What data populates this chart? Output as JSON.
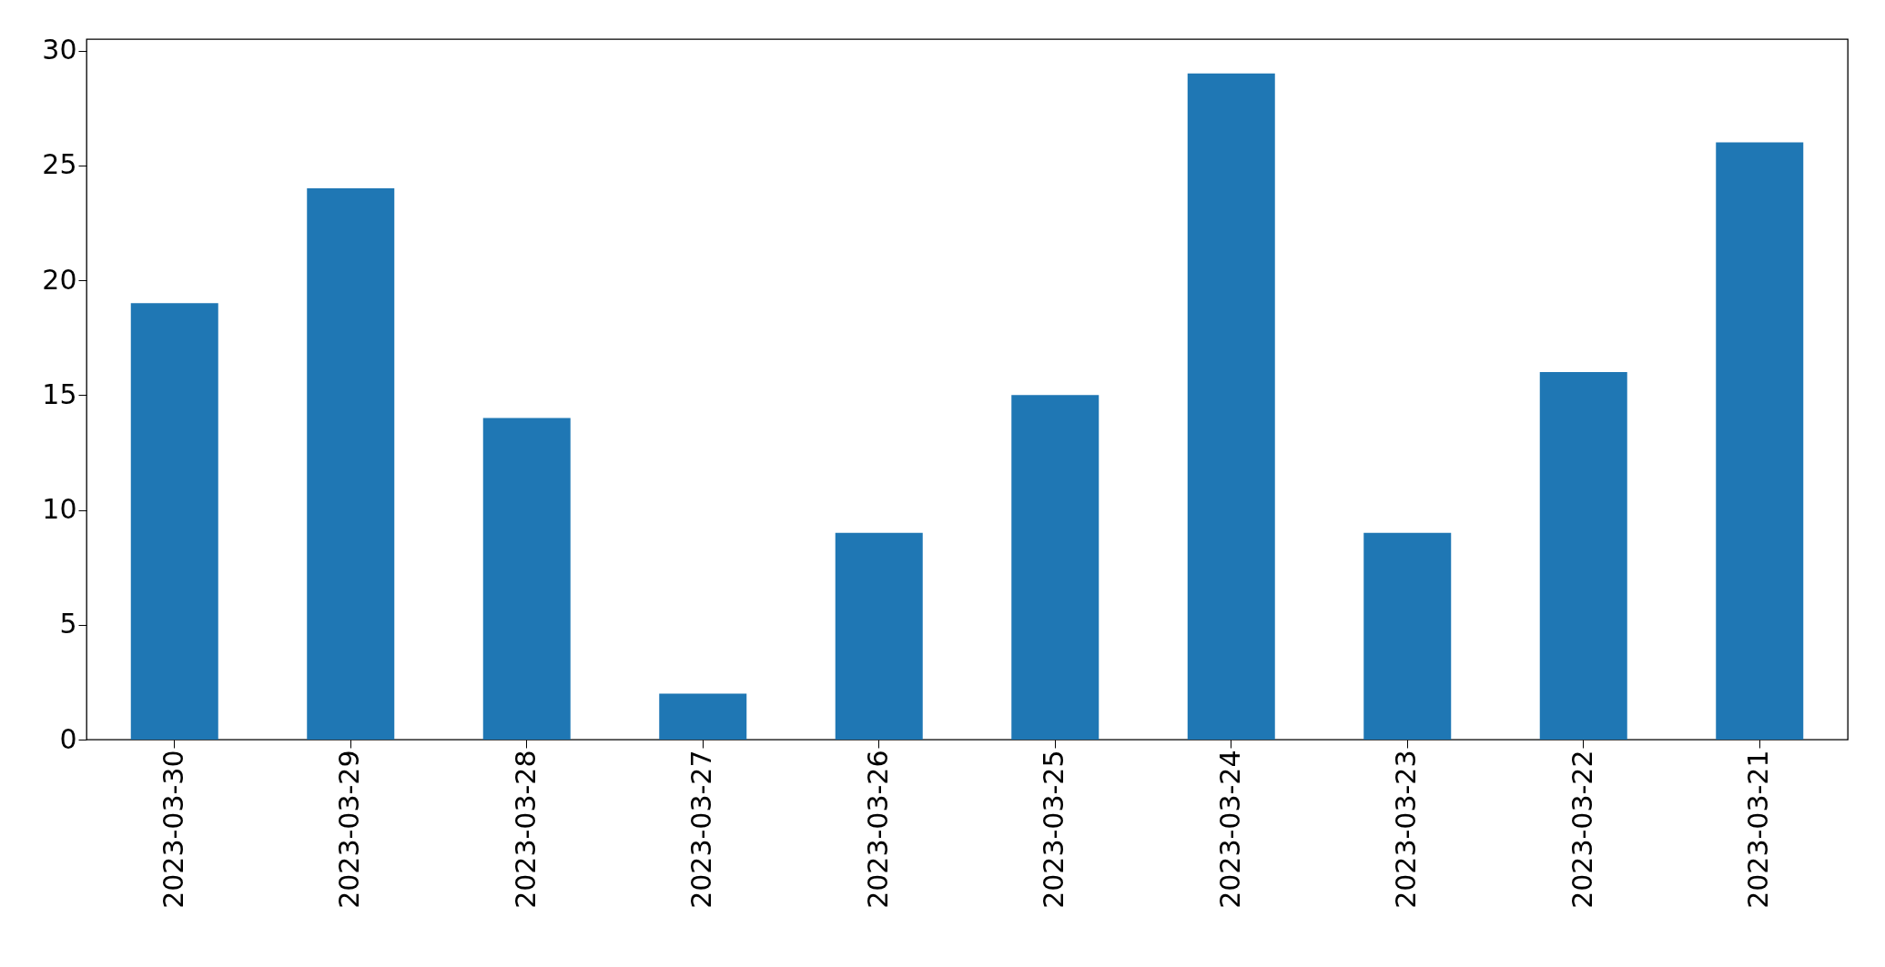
{
  "chart_data": {
    "type": "bar",
    "categories": [
      "2023-03-30",
      "2023-03-29",
      "2023-03-28",
      "2023-03-27",
      "2023-03-26",
      "2023-03-25",
      "2023-03-24",
      "2023-03-23",
      "2023-03-22",
      "2023-03-21"
    ],
    "values": [
      19,
      24,
      14,
      2,
      9,
      15,
      29,
      9,
      16,
      26
    ],
    "color": "#1f77b4",
    "ylim": [
      0,
      30.5
    ],
    "yticks": [
      0,
      5,
      10,
      15,
      20,
      25,
      30
    ],
    "grid": false
  }
}
